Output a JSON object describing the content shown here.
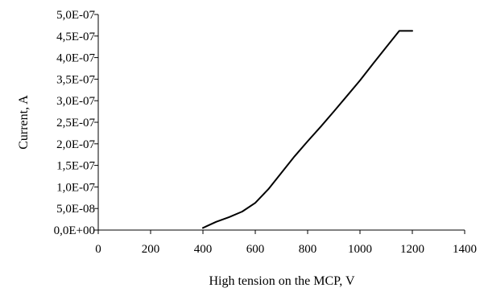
{
  "chart_data": {
    "type": "line",
    "xlabel": "High tension on the MCP, V",
    "ylabel": "Current, A",
    "xlim": [
      0,
      1400
    ],
    "ylim": [
      0,
      5e-07
    ],
    "x_ticks": [
      0,
      200,
      400,
      600,
      800,
      1000,
      1200,
      1400
    ],
    "x_tick_labels": [
      "0",
      "200",
      "400",
      "600",
      "800",
      "1000",
      "1200",
      "1400"
    ],
    "y_ticks": [
      0,
      5e-08,
      1e-07,
      1.5e-07,
      2e-07,
      2.5e-07,
      3e-07,
      3.5e-07,
      4e-07,
      4.5e-07,
      5e-07
    ],
    "y_tick_labels": [
      "0,0E+00",
      "5,0E-08",
      "1,0E-07",
      "1,5E-07",
      "2,0E-07",
      "2,5E-07",
      "3,0E-07",
      "3,5E-07",
      "4,0E-07",
      "4,5E-07",
      "5,0E-07"
    ],
    "grid": false,
    "series": [
      {
        "color": "#000000",
        "x": [
          400,
          450,
          500,
          550,
          600,
          650,
          700,
          750,
          800,
          850,
          900,
          950,
          1000,
          1050,
          1100,
          1150,
          1200
        ],
        "y": [
          5e-09,
          1.9e-08,
          3e-08,
          4.3e-08,
          6.3e-08,
          9.5e-08,
          1.33e-07,
          1.71e-07,
          2.06e-07,
          2.4e-07,
          2.75e-07,
          3.11e-07,
          3.47e-07,
          3.86e-07,
          4.24e-07,
          4.62e-07,
          4.62e-07
        ]
      }
    ]
  }
}
